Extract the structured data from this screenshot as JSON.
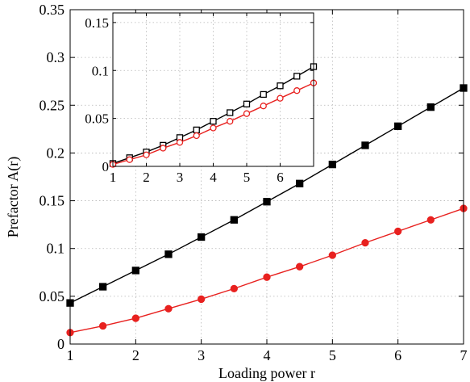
{
  "chart_data": [
    {
      "type": "line",
      "xlabel": "Loading power r",
      "ylabel": "Prefactor A(r)",
      "xlim": [
        1,
        7
      ],
      "ylim": [
        0,
        0.35
      ],
      "xticks": [
        1,
        2,
        3,
        4,
        5,
        6,
        7
      ],
      "yticks": [
        0,
        0.05,
        0.1,
        0.15,
        0.2,
        0.25,
        0.3,
        0.35
      ],
      "xtick_labels": [
        "1",
        "2",
        "3",
        "4",
        "5",
        "6",
        "7"
      ],
      "ytick_labels": [
        "0",
        "0.05",
        "0.1",
        "0.15",
        "0.2",
        "0.25",
        "0.3",
        "0.35"
      ],
      "grid": true,
      "series": [
        {
          "color": "#000000",
          "marker": "filled-square",
          "x": [
            1,
            1.5,
            2,
            2.5,
            3,
            3.5,
            4,
            4.5,
            5,
            5.5,
            6,
            6.5,
            7
          ],
          "y": [
            0.043,
            0.06,
            0.077,
            0.094,
            0.112,
            0.13,
            0.149,
            0.168,
            0.188,
            0.208,
            0.228,
            0.248,
            0.268
          ]
        },
        {
          "color": "#e8211f",
          "marker": "filled-circle",
          "x": [
            1,
            1.5,
            2,
            2.5,
            3,
            3.5,
            4,
            4.5,
            5,
            5.5,
            6,
            6.5,
            7
          ],
          "y": [
            0.012,
            0.019,
            0.027,
            0.037,
            0.047,
            0.058,
            0.07,
            0.081,
            0.093,
            0.106,
            0.118,
            0.13,
            0.142
          ]
        }
      ]
    },
    {
      "type": "line",
      "inset": true,
      "xlim": [
        1,
        7
      ],
      "ylim": [
        0,
        0.16
      ],
      "xticks": [
        1,
        2,
        3,
        4,
        5,
        6
      ],
      "yticks": [
        0,
        0.05,
        0.1,
        0.15
      ],
      "xtick_labels": [
        "1",
        "2",
        "3",
        "4",
        "5",
        "6"
      ],
      "ytick_labels": [
        "0",
        "0.05",
        "0.1",
        "0.15"
      ],
      "grid": true,
      "series": [
        {
          "color": "#000000",
          "marker": "open-square",
          "x": [
            1,
            1.5,
            2,
            2.5,
            3,
            3.5,
            4,
            4.5,
            5,
            5.5,
            6,
            6.5,
            7
          ],
          "y": [
            0.003,
            0.009,
            0.015,
            0.022,
            0.03,
            0.038,
            0.047,
            0.056,
            0.065,
            0.075,
            0.084,
            0.094,
            0.104
          ]
        },
        {
          "color": "#e8211f",
          "marker": "open-circle",
          "x": [
            1,
            1.5,
            2,
            2.5,
            3,
            3.5,
            4,
            4.5,
            5,
            5.5,
            6,
            6.5,
            7
          ],
          "y": [
            0.002,
            0.007,
            0.012,
            0.019,
            0.025,
            0.032,
            0.04,
            0.047,
            0.055,
            0.063,
            0.071,
            0.079,
            0.087
          ]
        }
      ]
    }
  ]
}
